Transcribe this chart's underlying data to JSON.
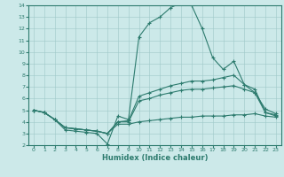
{
  "xlabel": "Humidex (Indice chaleur)",
  "background_color": "#cce9e9",
  "line_color": "#2d7b6e",
  "xlim": [
    -0.5,
    23.5
  ],
  "ylim": [
    2,
    14
  ],
  "xticks": [
    0,
    1,
    2,
    3,
    4,
    5,
    6,
    7,
    8,
    9,
    10,
    11,
    12,
    13,
    14,
    15,
    16,
    17,
    18,
    19,
    20,
    21,
    22,
    23
  ],
  "yticks": [
    2,
    3,
    4,
    5,
    6,
    7,
    8,
    9,
    10,
    11,
    12,
    13,
    14
  ],
  "lines": [
    {
      "x": [
        0,
        1,
        2,
        3,
        4,
        5,
        6,
        7,
        8,
        9,
        10,
        11,
        12,
        13,
        14,
        15,
        16,
        17,
        18,
        19,
        20,
        21,
        22,
        23
      ],
      "y": [
        5.0,
        4.8,
        4.2,
        3.3,
        3.2,
        3.1,
        3.0,
        2.1,
        4.5,
        4.2,
        11.3,
        12.5,
        13.0,
        13.8,
        14.2,
        14.0,
        12.0,
        9.5,
        8.5,
        9.2,
        7.2,
        6.5,
        5.1,
        4.7
      ]
    },
    {
      "x": [
        0,
        1,
        2,
        3,
        4,
        5,
        6,
        7,
        8,
        9,
        10,
        11,
        12,
        13,
        14,
        15,
        16,
        17,
        18,
        19,
        20,
        21,
        22,
        23
      ],
      "y": [
        5.0,
        4.8,
        4.2,
        3.5,
        3.4,
        3.3,
        3.2,
        3.0,
        4.0,
        4.1,
        6.2,
        6.5,
        6.8,
        7.1,
        7.3,
        7.5,
        7.5,
        7.6,
        7.8,
        8.0,
        7.2,
        6.8,
        4.8,
        4.6
      ]
    },
    {
      "x": [
        0,
        1,
        2,
        3,
        4,
        5,
        6,
        7,
        8,
        9,
        10,
        11,
        12,
        13,
        14,
        15,
        16,
        17,
        18,
        19,
        20,
        21,
        22,
        23
      ],
      "y": [
        5.0,
        4.8,
        4.2,
        3.5,
        3.4,
        3.3,
        3.2,
        3.0,
        4.0,
        4.0,
        5.8,
        6.0,
        6.3,
        6.5,
        6.7,
        6.8,
        6.8,
        6.9,
        7.0,
        7.1,
        6.8,
        6.5,
        4.8,
        4.5
      ]
    },
    {
      "x": [
        0,
        1,
        2,
        3,
        4,
        5,
        6,
        7,
        8,
        9,
        10,
        11,
        12,
        13,
        14,
        15,
        16,
        17,
        18,
        19,
        20,
        21,
        22,
        23
      ],
      "y": [
        5.0,
        4.8,
        4.2,
        3.5,
        3.4,
        3.3,
        3.2,
        3.0,
        3.8,
        3.8,
        4.0,
        4.1,
        4.2,
        4.3,
        4.4,
        4.4,
        4.5,
        4.5,
        4.5,
        4.6,
        4.6,
        4.7,
        4.5,
        4.4
      ]
    }
  ]
}
